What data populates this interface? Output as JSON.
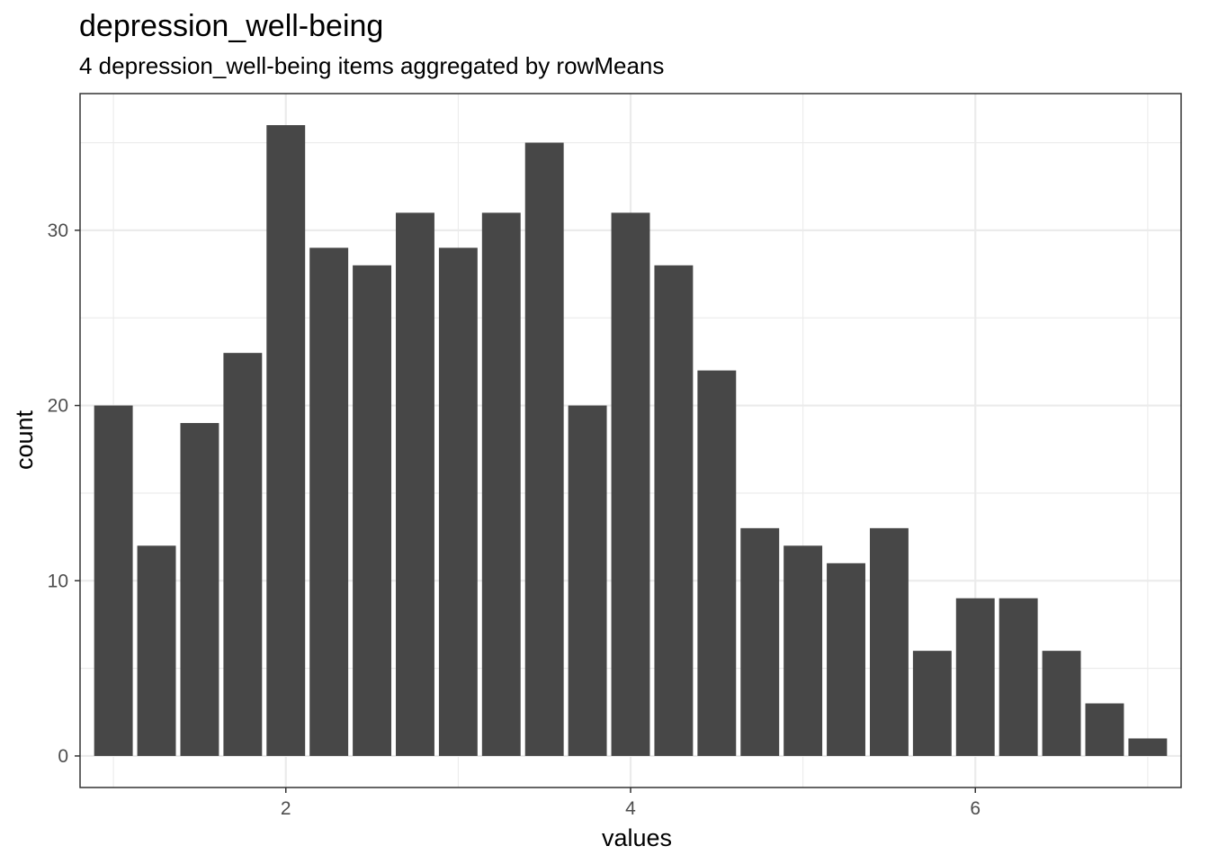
{
  "chart_data": {
    "type": "bar",
    "title": "depression_well-being",
    "subtitle": "4 depression_well-being items aggregated by rowMeans",
    "xlabel": "values",
    "ylabel": "count",
    "x": [
      1.0,
      1.25,
      1.5,
      1.75,
      2.0,
      2.25,
      2.5,
      2.75,
      3.0,
      3.25,
      3.5,
      3.75,
      4.0,
      4.25,
      4.5,
      4.75,
      5.0,
      5.25,
      5.5,
      5.75,
      6.0,
      6.25,
      6.5,
      6.75,
      7.0
    ],
    "values": [
      20,
      12,
      19,
      23,
      36,
      29,
      28,
      31,
      29,
      31,
      35,
      20,
      31,
      28,
      22,
      13,
      12,
      11,
      13,
      6,
      9,
      9,
      6,
      3,
      1
    ],
    "bin_width": 0.25,
    "xlim": [
      0.80625,
      7.19375
    ],
    "ylim": [
      -1.8,
      37.8
    ],
    "x_ticks": [
      2,
      4,
      6
    ],
    "x_tick_labels": [
      "2",
      "4",
      "6"
    ],
    "y_ticks": [
      0,
      10,
      20,
      30
    ],
    "y_tick_labels": [
      "0",
      "10",
      "20",
      "30"
    ],
    "x_minor": [
      1,
      3,
      5,
      7
    ],
    "y_minor": [
      5,
      15,
      25,
      35
    ],
    "grid": true,
    "theme": "bw",
    "bar_color": "#474747",
    "grid_color": "#ebebeb"
  }
}
